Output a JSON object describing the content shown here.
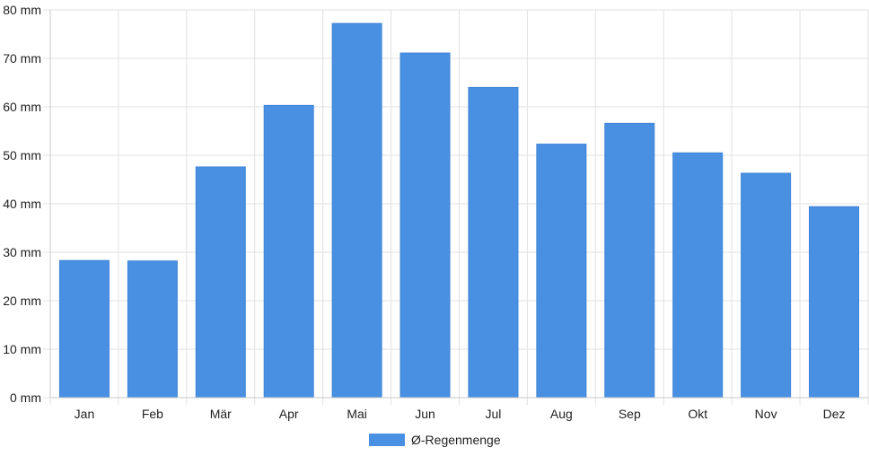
{
  "chart_data": {
    "type": "bar",
    "categories": [
      "Jan",
      "Feb",
      "Mär",
      "Apr",
      "Mai",
      "Jun",
      "Jul",
      "Aug",
      "Sep",
      "Okt",
      "Nov",
      "Dez"
    ],
    "series": [
      {
        "name": "Ø-Regenmenge",
        "color": "#4a90e2",
        "values": [
          28.3,
          28.2,
          47.6,
          60.3,
          77.2,
          71.1,
          64.0,
          52.3,
          56.6,
          50.5,
          46.3,
          39.4
        ]
      }
    ],
    "ylim": [
      0,
      80
    ],
    "yticks": [
      "0 mm",
      "10 mm",
      "20 mm",
      "30 mm",
      "40 mm",
      "50 mm",
      "60 mm",
      "70 mm",
      "80 mm"
    ],
    "ytick_values": [
      0,
      10,
      20,
      30,
      40,
      50,
      60,
      70,
      80
    ],
    "grid": true,
    "legend_position": "bottom-center"
  }
}
